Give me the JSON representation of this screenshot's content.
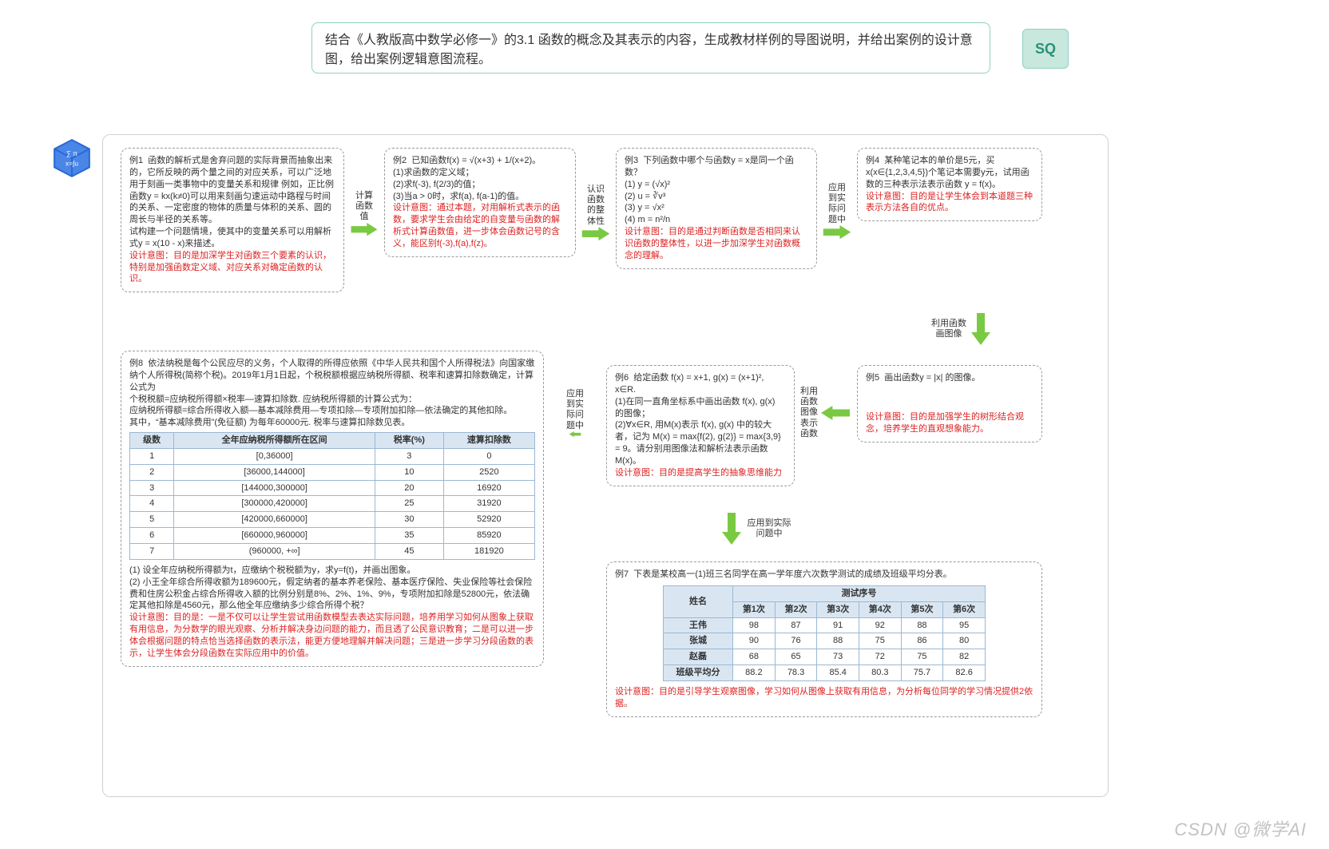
{
  "prompt": "结合《人教版高中数学必修一》的3.1 函数的概念及其表示的内容，生成教材样例的导图说明，并给出案例的设计意图，给出案例逻辑意图流程。",
  "avatar": "SQ",
  "watermark": "CSDN @微学AI",
  "colors": {
    "arrow": "#7ac943",
    "node_border": "#9a9a9a",
    "red": "#d22",
    "avatar_bg": "#c8e8dd",
    "th_bg": "#d9e6f2"
  },
  "arrows": {
    "a12": "计算\n函数\n值",
    "a23": "认识\n函数\n的整\n体性",
    "a34": "应用\n到实\n际问\n题中",
    "a45": "利用函数\n画图像",
    "a56": "利用\n函数\n图像\n表示\n函数",
    "a67": "应用到实际\n问题中",
    "a68": "应用\n到实\n际问\n题中"
  },
  "ex1": {
    "title": "例1",
    "body": "函数的解析式是舍弃问题的实际背景而抽象出来的，它所反映的两个量之间的对应关系，可以广泛地用于刻画一类事物中的变量关系和规律 例如，正比例函数y = kx(k≠0)可以用来刻画匀速运动中路程与时间的关系、一定密度的物体的质量与体积的关系、圆的周长与半径的关系等。",
    "body2": "试构建一个问题情境，使其中的变量关系可以用解析式y = x(10 - x)来描述。",
    "intent": "设计意图：目的是加深学生对函数三个要素的认识，特别是加强函数定义域、对应关系对确定函数的认识。"
  },
  "ex2": {
    "title": "例2",
    "head": "已知函数f(x) = √(x+3) + 1/(x+2)。",
    "l1": "(1)求函数的定义域；",
    "l2": "(2)求f(-3), f(2/3)的值；",
    "l3": "(3)当a > 0时，求f(a), f(a-1)的值。",
    "intent": "设计意图：通过本题，对用解析式表示的函数，要求学生会由给定的自变量与函数的解析式计算函数值，进一步体会函数记号的含义，能区别f(-3),f(a),f(z)。"
  },
  "ex3": {
    "title": "例3",
    "head": "下列函数中哪个与函数y = x是同一个函数？",
    "l1": "(1) y = (√x)²",
    "l2": "(2) u = ∛v³",
    "l3": "(3) y = √x²",
    "l4": "(4) m = n²/n",
    "intent": "设计意图：目的是通过判断函数是否相同来认识函数的整体性，以进一步加深学生对函数概念的理解。"
  },
  "ex4": {
    "title": "例4",
    "body": "某种笔记本的单价是5元，买x(x∈{1,2,3,4,5})个笔记本需要y元，试用函数的三种表示法表示函数 y = f(x)。",
    "intent": "设计意图：目的是让学生体会到本道题三种表示方法各自的优点。"
  },
  "ex5": {
    "title": "例5",
    "body": "画出函数y = |x| 的图像。",
    "intent": "设计意图：目的是加强学生的树形结合观念，培养学生的直观想象能力。"
  },
  "ex6": {
    "title": "例6",
    "head": "给定函数 f(x) = x+1, g(x) = (x+1)², x∈R.",
    "l1": "(1)在同一直角坐标系中画出函数 f(x), g(x) 的图像；",
    "l2": "(2)∀x∈R, 用M(x)表示 f(x), g(x) 中的较大者，记为 M(x) = max{f(2), g(2)} = max{3,9} = 9。请分别用图像法和解析法表示函数 M(x)。",
    "intent": "设计意图：目的是提高学生的抽象思维能力"
  },
  "ex7": {
    "title": "例7",
    "head": "下表是某校高一(1)班三名同学在高一学年度六次数学测试的成绩及班级平均分表。",
    "cols_label": "测试序号",
    "name_h": "姓名",
    "cols": [
      "第1次",
      "第2次",
      "第3次",
      "第4次",
      "第5次",
      "第6次"
    ],
    "rows": [
      [
        "王伟",
        "98",
        "87",
        "91",
        "92",
        "88",
        "95"
      ],
      [
        "张城",
        "90",
        "76",
        "88",
        "75",
        "86",
        "80"
      ],
      [
        "赵磊",
        "68",
        "65",
        "73",
        "72",
        "75",
        "82"
      ],
      [
        "班级平均分",
        "88.2",
        "78.3",
        "85.4",
        "80.3",
        "75.7",
        "82.6"
      ]
    ],
    "intent": "设计意图：目的是引导学生观察图像，学习如何从图像上获取有用信息，为分析每位同学的学习情况提供2依据。"
  },
  "ex8": {
    "title": "例8",
    "p1": "依法纳税是每个公民应尽的义务，个人取得的所得应依照《中华人民共和国个人所得税法》向国家缴纳个人所得税(简称个税)。2019年1月1日起，个税税额根据应纳税所得额、税率和速算扣除数确定，计算公式为",
    "p2": "个税税额=应纳税所得额×税率—速算扣除数. 应纳税所得额的计算公式为：",
    "p3": "应纳税所得额=综合所得收入额—基本减除费用—专项扣除—专项附加扣除—依法确定的其他扣除。",
    "p4": "其中，“基本减除费用”(免征额) 为每年60000元. 税率与速算扣除数见表。",
    "table_h": [
      "级数",
      "全年应纳税所得额所在区间",
      "税率(%)",
      "速算扣除数"
    ],
    "table_rows": [
      [
        "1",
        "[0,36000]",
        "3",
        "0"
      ],
      [
        "2",
        "[36000,144000]",
        "10",
        "2520"
      ],
      [
        "3",
        "[144000,300000]",
        "20",
        "16920"
      ],
      [
        "4",
        "[300000,420000]",
        "25",
        "31920"
      ],
      [
        "5",
        "[420000,660000]",
        "30",
        "52920"
      ],
      [
        "6",
        "[660000,960000]",
        "35",
        "85920"
      ],
      [
        "7",
        "(960000, +∞]",
        "45",
        "181920"
      ]
    ],
    "q1": "(1) 设全年应纳税所得额为t，应缴纳个税税额为y，求y=f(t)，并画出图象。",
    "q2": "(2) 小王全年综合所得收额为189600元，假定纳者的基本养老保险、基本医疗保险、失业保险等社会保险费和住房公积金占综合所得收入额的比例分别是8%、2%、1%、9%，专项附加扣除是52800元，依法确定其他扣除是4560元，那么他全年应缴纳多少综合所得个税？",
    "intent": "设计意图：目的是：一是不仅可以让学生尝试用函数模型去表达实际问题，培养用学习如何从图象上获取有用信息，为分数学的眼光观察、分析并解决身边问题的能力，而且透了公民意识教育；二是可以进一步体会根据问题的特点恰当选择函数的表示法，能更方便地理解并解决问题；三是进一步学习分段函数的表示，让学生体会分段函数在实际应用中的价值。"
  }
}
